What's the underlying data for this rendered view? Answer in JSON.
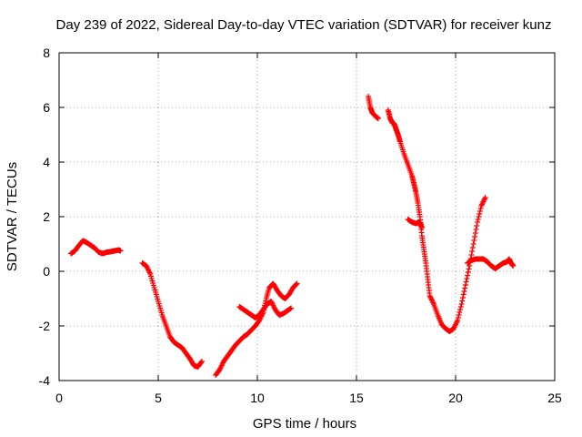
{
  "chart_data": {
    "type": "scatter",
    "title": "Day 239 of 2022, Sidereal Day-to-day VTEC variation (SDTVAR) for receiver kunz",
    "xlabel": "GPS time / hours",
    "ylabel": "SDTVAR / TECUs",
    "xlim": [
      0,
      25
    ],
    "ylim": [
      -4,
      8
    ],
    "xticks": [
      0,
      5,
      10,
      15,
      20,
      25
    ],
    "yticks": [
      -4,
      -2,
      0,
      2,
      4,
      6,
      8
    ],
    "grid": true,
    "marker": "+",
    "color": "#ff0000",
    "segments": [
      [
        [
          0.6,
          0.65
        ],
        [
          0.8,
          0.75
        ],
        [
          1.0,
          0.95
        ],
        [
          1.2,
          1.12
        ],
        [
          1.4,
          1.05
        ],
        [
          1.6,
          0.95
        ],
        [
          1.8,
          0.85
        ],
        [
          2.0,
          0.7
        ],
        [
          2.2,
          0.65
        ],
        [
          2.4,
          0.7
        ],
        [
          2.6,
          0.72
        ],
        [
          2.8,
          0.75
        ],
        [
          3.0,
          0.78
        ],
        [
          3.1,
          0.75
        ]
      ],
      [
        [
          4.2,
          0.3
        ],
        [
          4.4,
          0.2
        ],
        [
          4.6,
          -0.1
        ],
        [
          4.8,
          -0.6
        ],
        [
          5.0,
          -1.1
        ],
        [
          5.2,
          -1.6
        ],
        [
          5.4,
          -2.0
        ],
        [
          5.6,
          -2.4
        ],
        [
          5.8,
          -2.6
        ],
        [
          6.0,
          -2.7
        ],
        [
          6.2,
          -2.8
        ],
        [
          6.4,
          -3.0
        ],
        [
          6.6,
          -3.2
        ],
        [
          6.8,
          -3.45
        ],
        [
          7.0,
          -3.5
        ],
        [
          7.2,
          -3.3
        ]
      ],
      [
        [
          7.9,
          -3.8
        ],
        [
          8.1,
          -3.6
        ],
        [
          8.3,
          -3.3
        ],
        [
          8.5,
          -3.1
        ],
        [
          8.7,
          -2.9
        ],
        [
          8.9,
          -2.7
        ],
        [
          9.1,
          -2.55
        ],
        [
          9.3,
          -2.4
        ],
        [
          9.5,
          -2.3
        ],
        [
          9.7,
          -2.15
        ],
        [
          9.9,
          -2.0
        ],
        [
          10.1,
          -1.8
        ],
        [
          10.3,
          -1.5
        ],
        [
          10.45,
          -1.0
        ],
        [
          10.6,
          -0.6
        ],
        [
          10.8,
          -0.45
        ],
        [
          11.0,
          -0.7
        ],
        [
          11.2,
          -0.9
        ],
        [
          11.4,
          -1.0
        ],
        [
          11.6,
          -0.85
        ],
        [
          11.8,
          -0.6
        ],
        [
          12.0,
          -0.45
        ]
      ],
      [
        [
          9.1,
          -1.3
        ],
        [
          9.3,
          -1.4
        ],
        [
          9.5,
          -1.5
        ],
        [
          9.7,
          -1.6
        ],
        [
          9.9,
          -1.7
        ],
        [
          10.1,
          -1.6
        ],
        [
          10.3,
          -1.4
        ],
        [
          10.5,
          -1.2
        ],
        [
          10.7,
          -1.1
        ],
        [
          10.9,
          -1.4
        ],
        [
          11.1,
          -1.6
        ],
        [
          11.3,
          -1.55
        ],
        [
          11.5,
          -1.45
        ],
        [
          11.7,
          -1.35
        ]
      ],
      [
        [
          15.6,
          6.4
        ],
        [
          15.7,
          6.0
        ],
        [
          15.8,
          5.8
        ],
        [
          16.0,
          5.65
        ],
        [
          16.1,
          5.6
        ]
      ],
      [
        [
          16.6,
          5.9
        ],
        [
          16.7,
          5.6
        ],
        [
          16.8,
          5.45
        ],
        [
          16.9,
          5.4
        ],
        [
          17.0,
          5.2
        ],
        [
          17.1,
          5.0
        ],
        [
          17.2,
          4.75
        ],
        [
          17.4,
          4.3
        ],
        [
          17.6,
          3.9
        ],
        [
          17.8,
          3.5
        ],
        [
          17.9,
          3.2
        ],
        [
          18.0,
          2.9
        ],
        [
          18.1,
          2.5
        ],
        [
          18.2,
          2.0
        ],
        [
          18.3,
          1.3
        ],
        [
          18.4,
          0.8
        ],
        [
          18.5,
          0.3
        ],
        [
          18.6,
          -0.3
        ],
        [
          18.7,
          -0.9
        ],
        [
          18.9,
          -1.2
        ],
        [
          19.1,
          -1.6
        ],
        [
          19.3,
          -1.95
        ],
        [
          19.5,
          -2.1
        ],
        [
          19.7,
          -2.2
        ],
        [
          19.9,
          -2.1
        ],
        [
          20.1,
          -1.8
        ],
        [
          20.3,
          -1.2
        ],
        [
          20.5,
          -0.5
        ],
        [
          20.7,
          0.2
        ],
        [
          20.9,
          1.0
        ],
        [
          21.1,
          1.8
        ],
        [
          21.3,
          2.4
        ],
        [
          21.5,
          2.7
        ]
      ],
      [
        [
          17.6,
          1.9
        ],
        [
          17.8,
          1.8
        ],
        [
          18.0,
          1.75
        ],
        [
          18.2,
          1.8
        ],
        [
          18.3,
          1.6
        ]
      ],
      [
        [
          20.6,
          0.3
        ],
        [
          20.8,
          0.4
        ],
        [
          21.0,
          0.45
        ],
        [
          21.2,
          0.45
        ],
        [
          21.4,
          0.45
        ],
        [
          21.6,
          0.35
        ],
        [
          21.8,
          0.2
        ],
        [
          22.0,
          0.1
        ],
        [
          22.2,
          0.2
        ],
        [
          22.4,
          0.3
        ],
        [
          22.6,
          0.35
        ],
        [
          22.7,
          0.45
        ],
        [
          22.8,
          0.3
        ],
        [
          22.9,
          0.2
        ]
      ]
    ]
  }
}
